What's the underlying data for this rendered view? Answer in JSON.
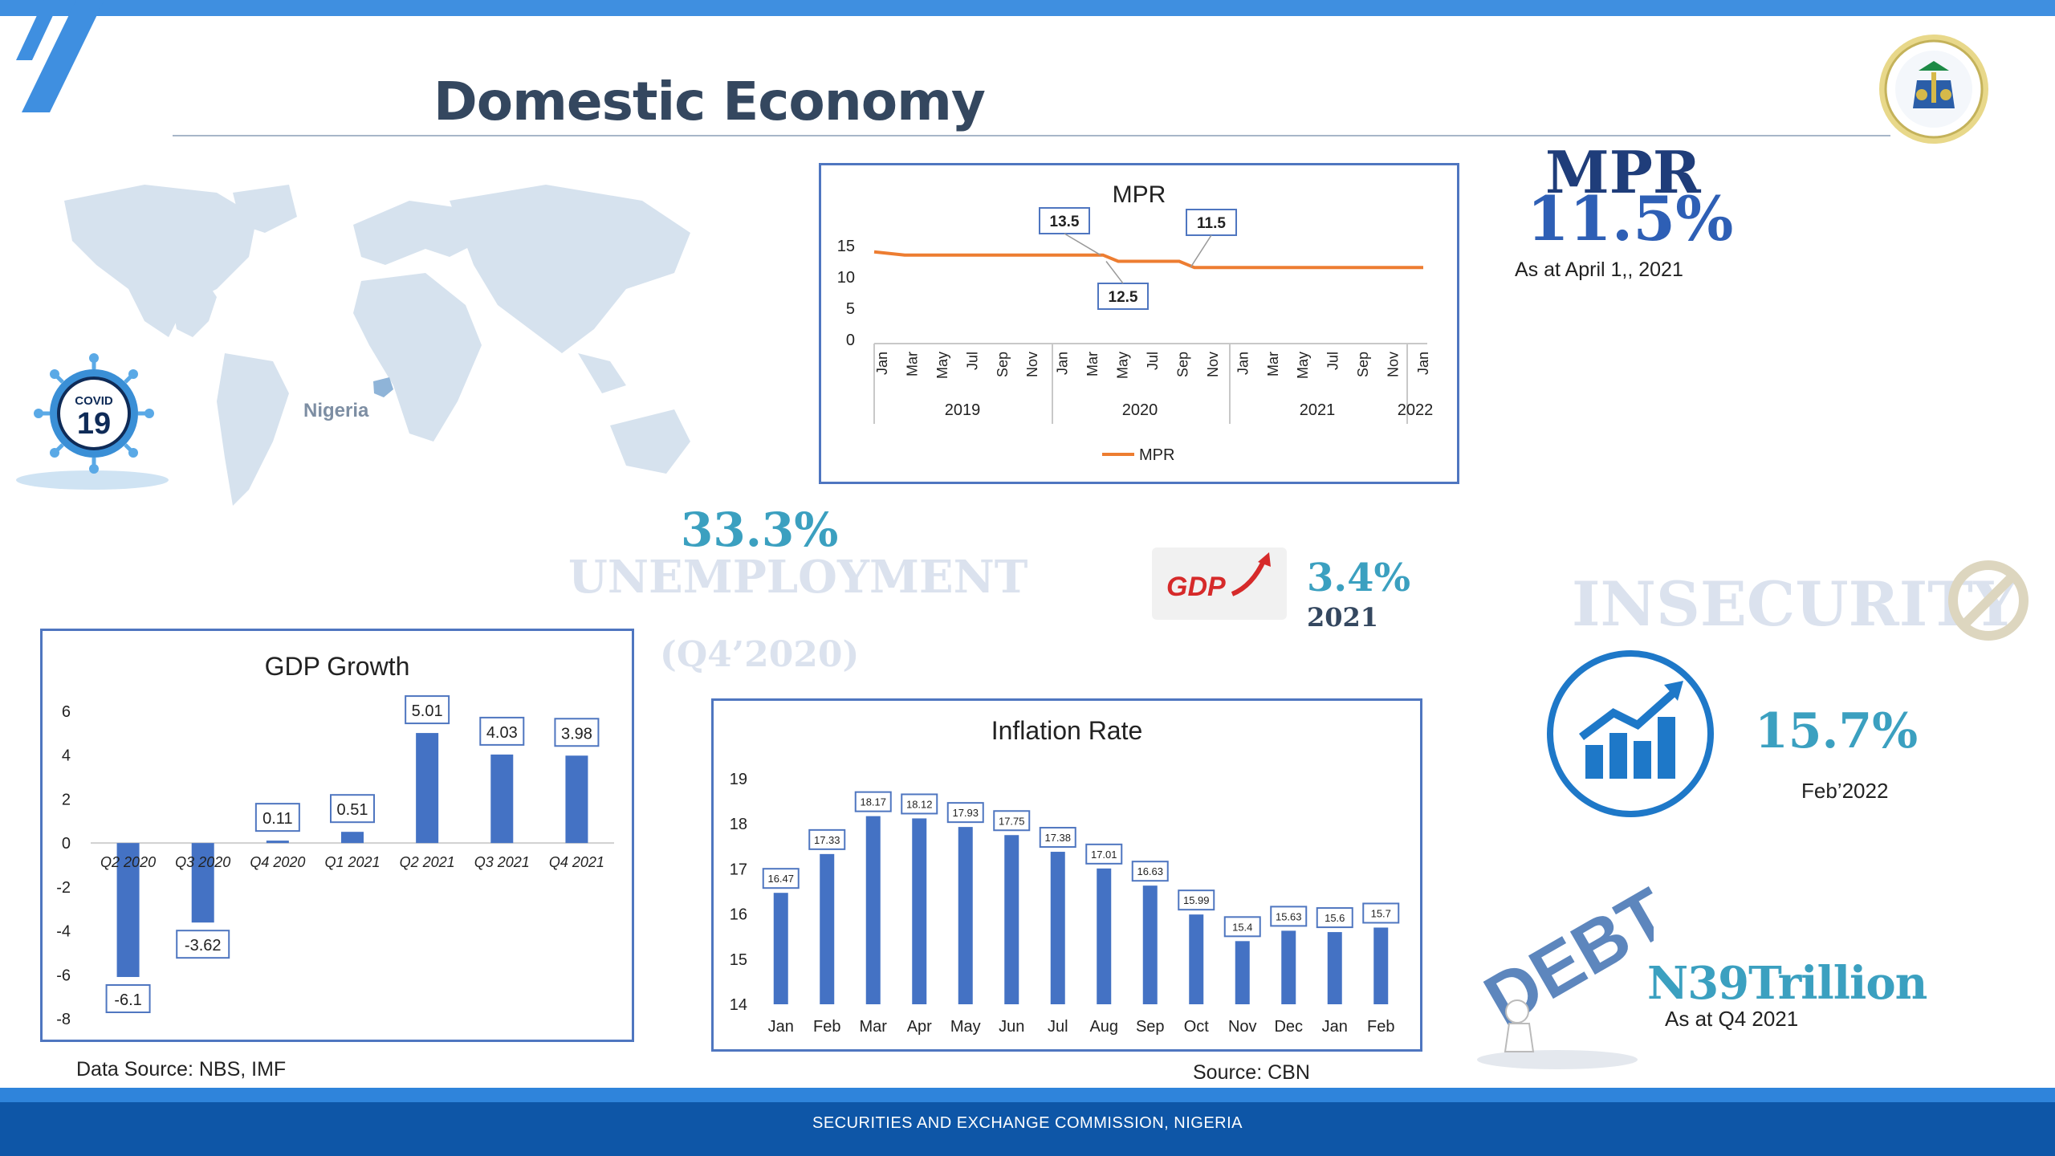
{
  "header": {
    "title": "Domestic Economy"
  },
  "map": {
    "label": "Nigeria",
    "covid_badge_top": "COVID",
    "covid_badge_num": "19"
  },
  "mpr_chart": {
    "title": "MPR",
    "legend": "MPR",
    "y_ticks": [
      "15",
      "10",
      "5",
      "0"
    ],
    "month_ticks": [
      "Jan",
      "Mar",
      "May",
      "Jul",
      "Sep",
      "Nov",
      "Jan",
      "Mar",
      "May",
      "Jul",
      "Sep",
      "Nov",
      "Jan",
      "Mar",
      "May",
      "Jul",
      "Sep",
      "Nov",
      "Jan"
    ],
    "year_labels": [
      "2019",
      "2020",
      "2021",
      "2022"
    ],
    "callouts": [
      "13.5",
      "12.5",
      "11.5"
    ]
  },
  "mpr_summary": {
    "label": "MPR",
    "value": "11.5%",
    "note": "As at April 1,, 2021"
  },
  "unemployment": {
    "value": "33.3%",
    "label": "UNEMPLOYMENT",
    "period": "(Q4’2020)"
  },
  "gdp_summary": {
    "icon_text": "GDP",
    "value": "3.4%",
    "year": "2021"
  },
  "insecurity": {
    "label": "INSECURITY"
  },
  "inflation_summary": {
    "value": "15.7%",
    "period": "Feb’2022"
  },
  "debt": {
    "icon_text": "DEBT",
    "value": "N39Trillion",
    "note": "As at  Q4 2021"
  },
  "sources": {
    "left": "Data Source: NBS, IMF",
    "right": "Source: CBN"
  },
  "footer": {
    "text": "SECURITIES AND EXCHANGE COMMISSION, NIGERIA"
  },
  "chart_data": [
    {
      "type": "line",
      "title": "MPR",
      "x_start": "2019-01",
      "x_end": "2022-01",
      "series": [
        {
          "name": "MPR",
          "points": [
            [
              "2019-01",
              14
            ],
            [
              "2019-03",
              13.5
            ],
            [
              "2020-04",
              13.5
            ],
            [
              "2020-05",
              12.5
            ],
            [
              "2020-09",
              12.5
            ],
            [
              "2020-10",
              11.5
            ],
            [
              "2022-01",
              11.5
            ]
          ]
        }
      ],
      "ylim": [
        0,
        15
      ],
      "y_ticks": [
        0,
        5,
        10,
        15
      ],
      "annotations": [
        13.5,
        12.5,
        11.5
      ],
      "legend": "bottom",
      "color": "#ed7d31"
    },
    {
      "type": "bar",
      "title": "GDP Growth",
      "categories": [
        "Q2 2020",
        "Q3 2020",
        "Q4 2020",
        "Q1 2021",
        "Q2 2021",
        "Q3 2021",
        "Q4 2021"
      ],
      "values": [
        -6.1,
        -3.62,
        0.11,
        0.51,
        5.01,
        4.03,
        3.98
      ],
      "ylim": [
        -8,
        6
      ],
      "y_ticks": [
        6,
        4,
        2,
        0,
        -2,
        -4,
        -6,
        -8
      ],
      "color": "#4472c4"
    },
    {
      "type": "bar",
      "title": "Inflation Rate",
      "categories": [
        "Jan",
        "Feb",
        "Mar",
        "Apr",
        "May",
        "Jun",
        "Jul",
        "Aug",
        "Sep",
        "Oct",
        "Nov",
        "Dec",
        "Jan",
        "Feb"
      ],
      "values": [
        16.47,
        17.33,
        18.17,
        18.12,
        17.93,
        17.75,
        17.38,
        17.01,
        16.63,
        15.99,
        15.4,
        15.63,
        15.6,
        15.7
      ],
      "ylim": [
        14,
        19
      ],
      "y_ticks": [
        19,
        18,
        17,
        16,
        15,
        14
      ],
      "color": "#4472c4"
    }
  ]
}
